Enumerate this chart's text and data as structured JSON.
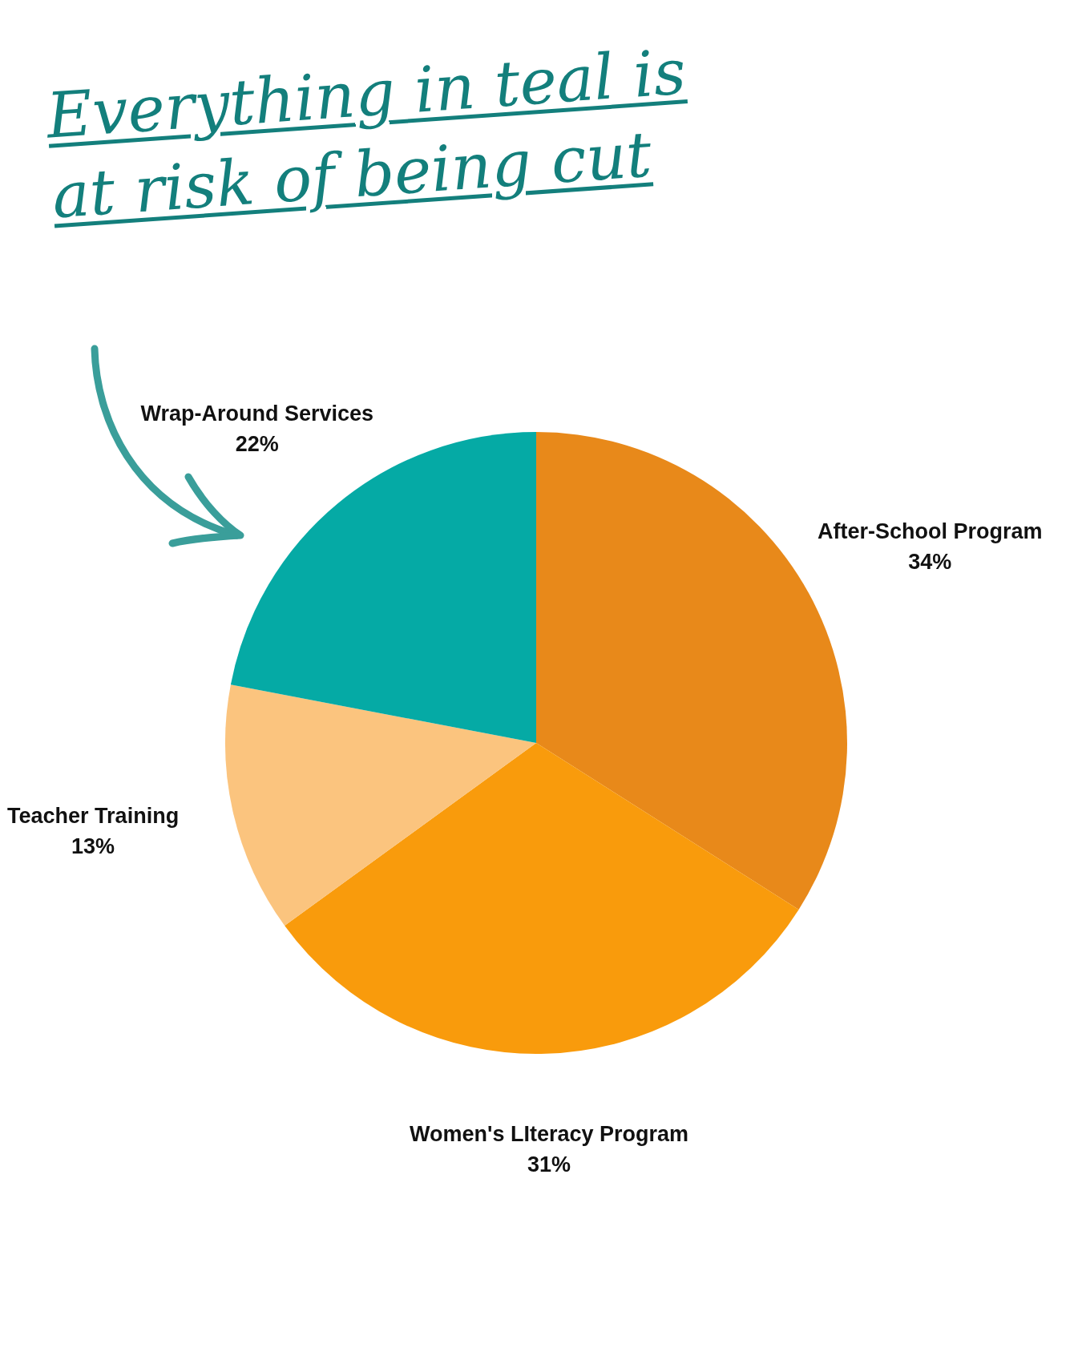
{
  "chart_data": {
    "type": "pie",
    "title": "Everything in teal is at risk of being cut",
    "categories": [
      "After-School Program",
      "Women's LIteracy Program",
      "Teacher Training",
      "Wrap-Around Services"
    ],
    "values": [
      34,
      31,
      13,
      22
    ],
    "value_labels": [
      "34%",
      "31%",
      "13%",
      "22%"
    ],
    "colors": [
      "#e8891a",
      "#f99b0c",
      "#fbc47e",
      "#05aaa5"
    ],
    "legend": false
  }
}
